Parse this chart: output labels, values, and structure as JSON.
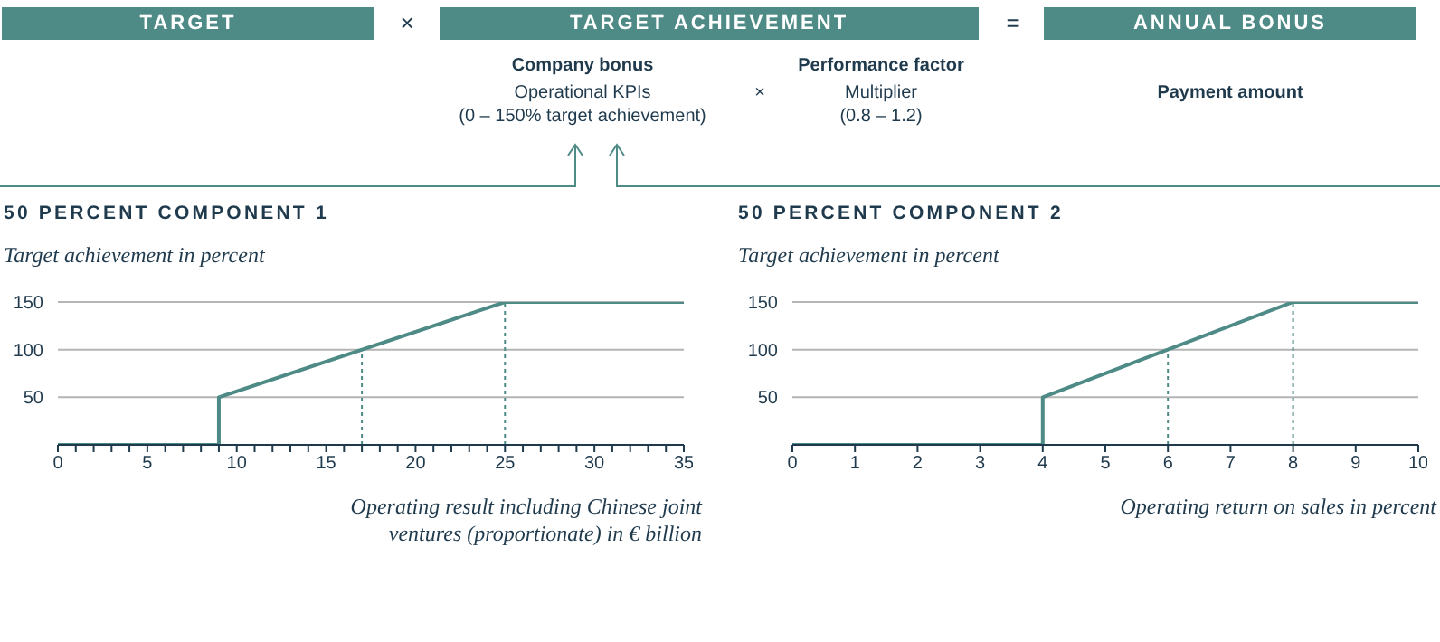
{
  "chart_data": [
    {
      "type": "other",
      "annotations": [
        "TARGET",
        "×",
        "TARGET ACHIEVEMENT",
        "=",
        "ANNUAL BONUS",
        "Company bonus",
        "Operational KPIs",
        "(0 – 150% target achievement)",
        "×",
        "Performance factor",
        "Multiplier",
        "(0.8 – 1.2)",
        "Payment amount"
      ]
    },
    {
      "type": "line",
      "title": "50 PERCENT COMPONENT 1",
      "ylabel": "Target achievement in percent",
      "xlabel": "Operating result including Chinese joint ventures (proportionate) in € billion",
      "x": [
        0,
        9,
        9,
        25,
        35
      ],
      "series": [
        {
          "color": "#4e8b86",
          "values": [
            0,
            0,
            50,
            150,
            150
          ]
        }
      ],
      "xlim": [
        0,
        35
      ],
      "xticks": [
        0,
        {
          "value": 1,
          "label": null
        },
        {
          "value": 2,
          "label": null
        },
        {
          "value": 3,
          "label": null
        },
        {
          "value": 4,
          "label": null
        },
        5,
        {
          "value": 6,
          "label": null
        },
        {
          "value": 7,
          "label": null
        },
        {
          "value": 8,
          "label": null
        },
        {
          "value": 9,
          "label": null
        },
        10,
        {
          "value": 11,
          "label": null
        },
        {
          "value": 12,
          "label": null
        },
        {
          "value": 13,
          "label": null
        },
        {
          "value": 14,
          "label": null
        },
        15,
        {
          "value": 16,
          "label": null
        },
        {
          "value": 17,
          "label": null
        },
        {
          "value": 18,
          "label": null
        },
        {
          "value": 19,
          "label": null
        },
        20,
        {
          "value": 21,
          "label": null
        },
        {
          "value": 22,
          "label": null
        },
        {
          "value": 23,
          "label": null
        },
        {
          "value": 24,
          "label": null
        },
        25,
        {
          "value": 26,
          "label": null
        },
        {
          "value": 27,
          "label": null
        },
        {
          "value": 28,
          "label": null
        },
        {
          "value": 29,
          "label": null
        },
        30,
        {
          "value": 31,
          "label": null
        },
        {
          "value": 32,
          "label": null
        },
        {
          "value": 33,
          "label": null
        },
        {
          "value": 34,
          "label": null
        },
        35
      ],
      "ylim": [
        0,
        150
      ],
      "yticks": [
        50,
        100,
        150
      ],
      "grid": "y",
      "marker": "none",
      "ref_lines": [
        {
          "axis": "x",
          "value": 17,
          "color": "#4e8b86",
          "line_style": "dotted"
        },
        {
          "axis": "x",
          "value": 25,
          "color": "#4e8b86",
          "line_style": "dotted"
        }
      ]
    },
    {
      "type": "line",
      "title": "50 PERCENT COMPONENT 2",
      "ylabel": "Target achievement in percent",
      "xlabel": "Operating return on sales in percent",
      "x": [
        0,
        4,
        4,
        8,
        10
      ],
      "series": [
        {
          "color": "#4e8b86",
          "values": [
            0,
            0,
            50,
            150,
            150
          ]
        }
      ],
      "xlim": [
        0,
        10
      ],
      "xticks": [
        0,
        1,
        2,
        3,
        4,
        5,
        6,
        7,
        8,
        9,
        10
      ],
      "ylim": [
        0,
        150
      ],
      "yticks": [
        50,
        100,
        150
      ],
      "grid": "y",
      "marker": "none",
      "ref_lines": [
        {
          "axis": "x",
          "value": 6,
          "color": "#4e8b86",
          "line_style": "dotted"
        },
        {
          "axis": "x",
          "value": 8,
          "color": "#4e8b86",
          "line_style": "dotted"
        }
      ]
    }
  ]
}
